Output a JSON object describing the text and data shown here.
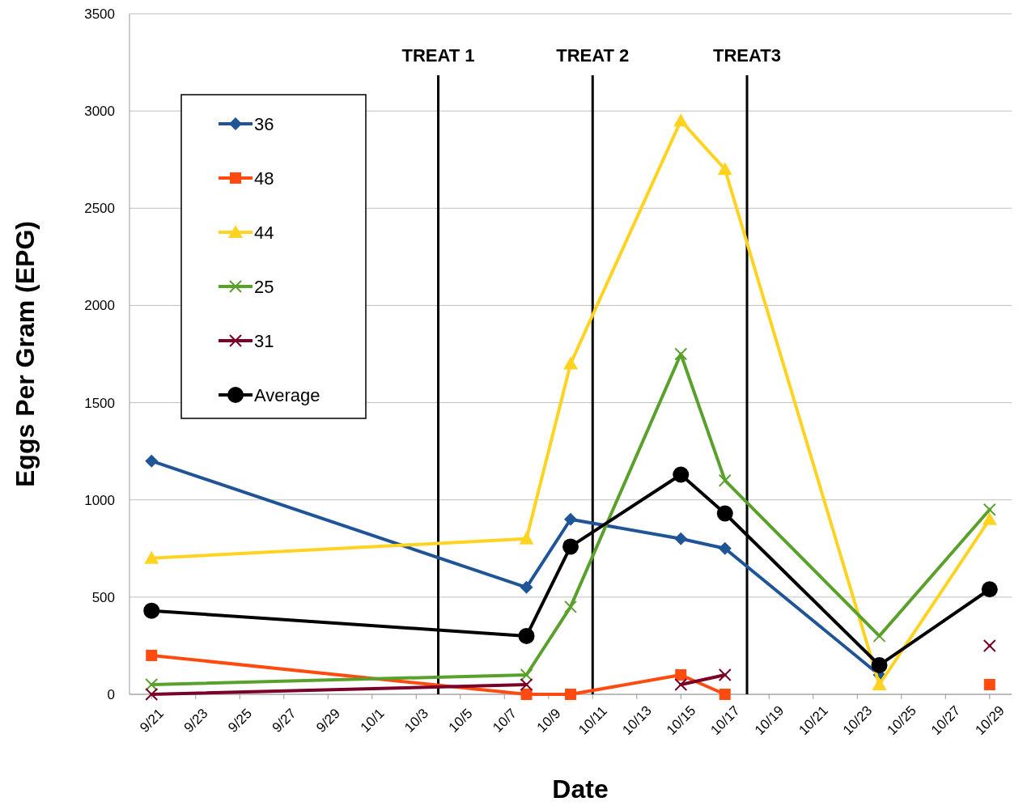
{
  "chart_data": {
    "type": "line",
    "xlabel": "Date",
    "ylabel": "Eggs Per Gram (EPG)",
    "x": [
      "--09-21",
      "--10-08",
      "--10-10",
      "--10-15",
      "--10-17",
      "--10-24",
      "--10-29"
    ],
    "series": [
      {
        "name": "36",
        "color": "#1f5596",
        "marker": "diamond",
        "values": [
          1200,
          550,
          900,
          800,
          750,
          100,
          null
        ]
      },
      {
        "name": "48",
        "color": "#ff4b10",
        "marker": "square",
        "values": [
          200,
          0,
          0,
          100,
          0,
          null,
          50
        ]
      },
      {
        "name": "44",
        "color": "#ffd320",
        "marker": "triangle",
        "values": [
          700,
          800,
          1700,
          2950,
          2700,
          50,
          900
        ]
      },
      {
        "name": "25",
        "color": "#5aa02c",
        "marker": "cross",
        "values": [
          50,
          100,
          450,
          1750,
          1100,
          300,
          950
        ]
      },
      {
        "name": "31",
        "color": "#7b0028",
        "marker": "cross",
        "values": [
          0,
          50,
          null,
          50,
          100,
          null,
          250
        ]
      },
      {
        "name": "Average",
        "color": "#000000",
        "marker": "circle",
        "values": [
          430,
          300,
          760,
          1130,
          930,
          150,
          540
        ]
      }
    ],
    "xlim": [
      "--09-20",
      "--10-30"
    ],
    "xticks": [
      {
        "value": "--09-21",
        "label": "9/21"
      },
      {
        "value": "--09-23",
        "label": "9/23"
      },
      {
        "value": "--09-25",
        "label": "9/25"
      },
      {
        "value": "--09-27",
        "label": "9/27"
      },
      {
        "value": "--09-29",
        "label": "9/29"
      },
      {
        "value": "--10-01",
        "label": "10/1"
      },
      {
        "value": "--10-03",
        "label": "10/3"
      },
      {
        "value": "--10-05",
        "label": "10/5"
      },
      {
        "value": "--10-07",
        "label": "10/7"
      },
      {
        "value": "--10-09",
        "label": "10/9"
      },
      {
        "value": "--10-11",
        "label": "10/11"
      },
      {
        "value": "--10-13",
        "label": "10/13"
      },
      {
        "value": "--10-15",
        "label": "10/15"
      },
      {
        "value": "--10-17",
        "label": "10/17"
      },
      {
        "value": "--10-19",
        "label": "10/19"
      },
      {
        "value": "--10-21",
        "label": "10/21"
      },
      {
        "value": "--10-23",
        "label": "10/23"
      },
      {
        "value": "--10-25",
        "label": "10/25"
      },
      {
        "value": "--10-27",
        "label": "10/27"
      },
      {
        "value": "--10-29",
        "label": "10/29"
      }
    ],
    "ylim": [
      0,
      3500
    ],
    "yticks": [
      0,
      500,
      1000,
      1500,
      2000,
      2500,
      3000,
      3500
    ],
    "grid": "y",
    "legend": "top left",
    "ref_lines": [
      {
        "axis": "x",
        "value": "--10-04",
        "label": "TREAT 1",
        "color": "#000000"
      },
      {
        "axis": "x",
        "value": "--10-11",
        "label": "TREAT 2",
        "color": "#000000"
      },
      {
        "axis": "x",
        "value": "--10-18",
        "label": "TREAT3",
        "color": "#000000"
      }
    ]
  }
}
